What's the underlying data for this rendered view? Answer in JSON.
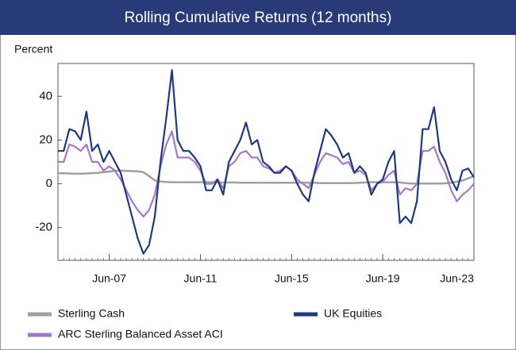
{
  "chart_data": {
    "type": "line",
    "title": "Rolling Cumulative Returns (12 months)",
    "y_label": "Percent",
    "categories": [
      null,
      null,
      null,
      null,
      null,
      null,
      null,
      null,
      null,
      "Jun-07",
      null,
      null,
      null,
      null,
      null,
      null,
      null,
      null,
      null,
      null,
      null,
      null,
      null,
      null,
      null,
      "Jun-11",
      null,
      null,
      null,
      null,
      null,
      null,
      null,
      null,
      null,
      null,
      null,
      null,
      null,
      null,
      null,
      "Jun-15",
      null,
      null,
      null,
      null,
      null,
      null,
      null,
      null,
      null,
      null,
      null,
      null,
      null,
      null,
      null,
      "Jun-19",
      null,
      null,
      null,
      null,
      null,
      null,
      null,
      null,
      null,
      null,
      null,
      null,
      null,
      null,
      null,
      "Jun-23"
    ],
    "series": [
      {
        "name": "Sterling Cash",
        "color": "#a0a0a0",
        "values": [
          4.8,
          4.8,
          4.7,
          4.6,
          4.6,
          4.7,
          4.9,
          5,
          5.3,
          5.6,
          5.9,
          6,
          5.9,
          5.8,
          5.7,
          5.3,
          3.5,
          1.5,
          1,
          0.8,
          0.7,
          0.7,
          0.7,
          0.7,
          0.7,
          0.7,
          0.7,
          0.7,
          0.6,
          0.6,
          0.6,
          0.6,
          0.5,
          0.5,
          0.5,
          0.5,
          0.5,
          0.5,
          0.5,
          0.5,
          0.5,
          0.5,
          0.5,
          0.5,
          0.5,
          0.5,
          0.3,
          0.3,
          0.3,
          0.3,
          0.3,
          0.3,
          0.4,
          0.5,
          0.6,
          0.7,
          0.7,
          0.7,
          0.7,
          0.7,
          0.6,
          0.3,
          0.1,
          0.1,
          0.1,
          0.1,
          0.1,
          0.1,
          0.2,
          0.5,
          1,
          1.5,
          2.5,
          3.5
        ]
      },
      {
        "name": "ARC Sterling Balanced Asset ACI",
        "color": "#a678c8",
        "values": [
          10,
          10,
          18,
          17,
          15,
          18,
          10,
          10,
          6,
          8,
          6,
          2,
          -3,
          -8,
          -12,
          -15,
          -12,
          -5,
          8,
          18,
          24,
          12,
          12,
          12,
          10,
          6,
          0,
          0,
          2,
          -2,
          8,
          10,
          14,
          15,
          12,
          12,
          8,
          7,
          5,
          6,
          8,
          6,
          2,
          0,
          -2,
          4,
          10,
          14,
          13,
          12,
          9,
          10,
          5,
          6,
          4,
          -3,
          0,
          1,
          4,
          6,
          -5,
          -2,
          -3,
          0,
          15,
          15,
          17,
          10,
          5,
          -3,
          -8,
          -5,
          -3,
          0
        ]
      },
      {
        "name": "UK Equities",
        "color": "#1f3a7a",
        "values": [
          15,
          15,
          25,
          24,
          20,
          33,
          15,
          18,
          10,
          15,
          10,
          5,
          -5,
          -15,
          -25,
          -32,
          -28,
          -15,
          10,
          30,
          52,
          20,
          15,
          15,
          12,
          8,
          -3,
          -3,
          2,
          -5,
          10,
          15,
          20,
          28,
          18,
          20,
          10,
          8,
          5,
          5,
          8,
          6,
          0,
          -5,
          -8,
          5,
          15,
          25,
          22,
          18,
          12,
          14,
          5,
          8,
          5,
          -5,
          0,
          2,
          10,
          15,
          -18,
          -15,
          -18,
          -8,
          25,
          25,
          35,
          15,
          10,
          2,
          -3,
          6,
          7,
          3
        ]
      }
    ],
    "ylim": [
      -35,
      55
    ],
    "yticks": [
      -20,
      0,
      20,
      40
    ]
  }
}
